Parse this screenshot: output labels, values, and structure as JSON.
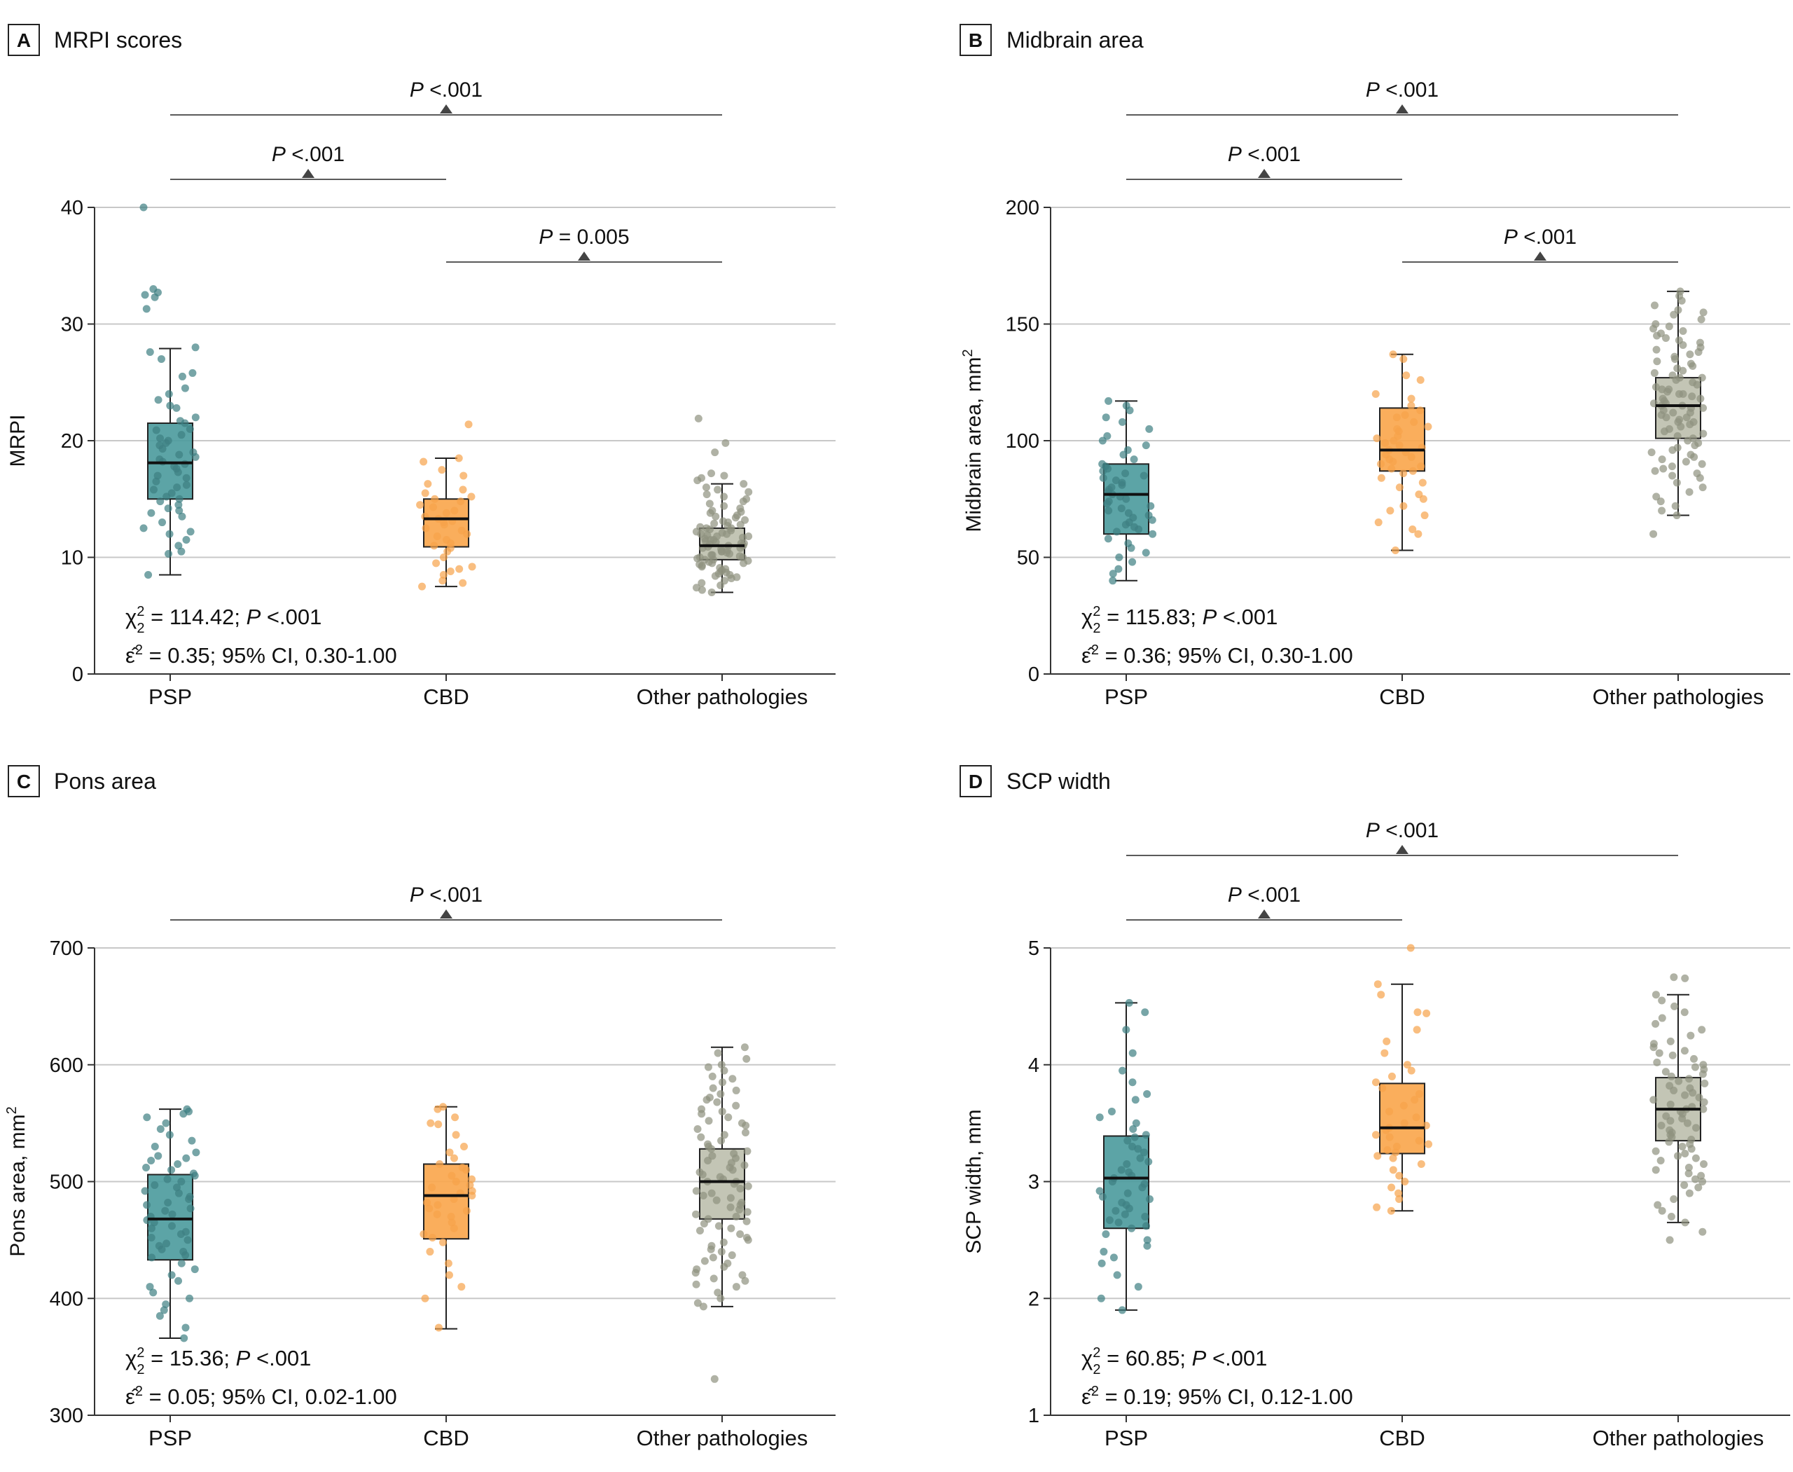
{
  "figure": {
    "categories": [
      "PSP",
      "CBD",
      "Other pathologies"
    ],
    "colors": {
      "PSP": "#4a9a9c",
      "CBD": "#f9a54a",
      "Other pathologies": "#bcbfad",
      "dot_PSP": "#3d7f82",
      "dot_CBD": "#f6a24a",
      "dot_Other": "#8f917f",
      "grid": "#c8c8c8",
      "bracket": "#5a5a5a",
      "axis": "#333333"
    }
  },
  "chart_data": [
    {
      "type": "box",
      "panel": "A",
      "title": "MRPI scores",
      "ylabel": "MRPI",
      "ylabel_sup": "",
      "ylim": [
        0,
        40
      ],
      "yticks": [
        0,
        10,
        20,
        30,
        40
      ],
      "ytick_labels": [
        "0",
        "10",
        "20",
        "30",
        "40"
      ],
      "series": [
        {
          "name": "PSP",
          "whisker_low": 8.5,
          "q1": 15.0,
          "median": 18.1,
          "q3": 21.5,
          "whisker_high": 27.9,
          "points": [
            40.0,
            33.0,
            32.5,
            32.7,
            32.3,
            31.3,
            28.0,
            27.6,
            27.0,
            25.8,
            25.5,
            24.5,
            24.0,
            23.5,
            23.0,
            22.8,
            22.0,
            21.7,
            21.5,
            21.0,
            20.9,
            20.5,
            20.2,
            20.0,
            19.8,
            19.6,
            19.3,
            19.0,
            18.8,
            18.6,
            18.4,
            18.2,
            18.0,
            17.8,
            17.6,
            17.3,
            17.0,
            16.8,
            16.5,
            16.2,
            16.0,
            15.8,
            15.5,
            15.2,
            15.0,
            14.8,
            14.5,
            14.2,
            14.0,
            13.8,
            13.5,
            13.0,
            12.5,
            12.2,
            12.0,
            11.5,
            11.0,
            10.5,
            10.3,
            8.5
          ]
        },
        {
          "name": "CBD",
          "whisker_low": 7.5,
          "q1": 10.9,
          "median": 13.3,
          "q3": 15.0,
          "whisker_high": 18.5,
          "points": [
            21.4,
            18.5,
            18.2,
            17.5,
            17.0,
            16.3,
            15.8,
            15.5,
            15.2,
            15.0,
            14.8,
            14.5,
            14.3,
            14.0,
            13.8,
            13.5,
            13.3,
            13.1,
            13.0,
            12.8,
            12.5,
            12.3,
            12.0,
            11.8,
            11.5,
            11.2,
            11.0,
            10.8,
            10.5,
            10.0,
            9.5,
            9.2,
            9.0,
            8.8,
            8.5,
            8.0,
            7.8,
            7.5
          ]
        },
        {
          "name": "Other pathologies",
          "whisker_low": 7.0,
          "q1": 9.8,
          "median": 11.0,
          "q3": 12.5,
          "whisker_high": 16.3,
          "points": [
            21.9,
            19.8,
            19.0,
            17.2,
            17.0,
            16.8,
            16.6,
            16.3,
            16.0,
            15.8,
            15.6,
            15.4,
            15.2,
            15.0,
            14.8,
            14.6,
            14.4,
            14.2,
            14.0,
            13.9,
            13.8,
            13.6,
            13.5,
            13.4,
            13.2,
            13.1,
            13.0,
            12.9,
            12.8,
            12.7,
            12.6,
            12.5,
            12.5,
            12.4,
            12.3,
            12.2,
            12.1,
            12.0,
            12.0,
            11.9,
            11.8,
            11.8,
            11.7,
            11.6,
            11.5,
            11.5,
            11.4,
            11.3,
            11.2,
            11.2,
            11.1,
            11.0,
            11.0,
            11.0,
            10.9,
            10.8,
            10.8,
            10.7,
            10.6,
            10.5,
            10.5,
            10.4,
            10.3,
            10.2,
            10.2,
            10.1,
            10.0,
            10.0,
            9.9,
            9.8,
            9.8,
            9.7,
            9.6,
            9.5,
            9.5,
            9.4,
            9.3,
            9.2,
            9.1,
            9.0,
            8.9,
            8.8,
            8.7,
            8.6,
            8.5,
            8.4,
            8.3,
            8.2,
            8.0,
            7.8,
            7.6,
            7.4,
            7.2,
            7.0
          ]
        }
      ],
      "comparisons": [
        {
          "from": 0,
          "to": 2,
          "label": "P <.001",
          "p_italic": "P",
          "p_rest": " <.001"
        },
        {
          "from": 0,
          "to": 1,
          "label": "P <.001",
          "p_italic": "P",
          "p_rest": " <.001"
        },
        {
          "from": 1,
          "to": 2,
          "label": "P = 0.005",
          "p_italic": "P",
          "p_rest": " = 0.005"
        }
      ],
      "stats": {
        "line1_pre": "χ",
        "line1_sup": "2",
        "line1_sub": "2",
        "line1_mid": " = 114.42; ",
        "line1_p": "P",
        "line1_end": " <.001",
        "line2_pre": "ε̂",
        "line2_sup": "2",
        "line2_end": " = 0.35; 95% CI, 0.30-1.00"
      }
    },
    {
      "type": "box",
      "panel": "B",
      "title": "Midbrain area",
      "ylabel": "Midbrain area, mm",
      "ylabel_sup": "2",
      "ylim": [
        0,
        200
      ],
      "yticks": [
        0,
        50,
        100,
        150,
        200
      ],
      "ytick_labels": [
        "0",
        "50",
        "100",
        "150",
        "200"
      ],
      "series": [
        {
          "name": "PSP",
          "whisker_low": 40,
          "q1": 60,
          "median": 77,
          "q3": 90,
          "whisker_high": 117,
          "points": [
            117,
            115,
            113,
            110,
            108,
            105,
            102,
            100,
            98,
            96,
            94,
            92,
            90,
            89,
            88,
            87,
            86,
            85,
            84,
            83,
            82,
            81,
            80,
            79,
            78,
            77,
            76,
            75,
            74,
            73,
            72,
            71,
            70,
            69,
            68,
            67,
            66,
            65,
            64,
            63,
            62,
            61,
            60,
            58,
            56,
            54,
            52,
            50,
            48,
            45,
            43,
            40
          ]
        },
        {
          "name": "CBD",
          "whisker_low": 53,
          "q1": 87,
          "median": 96,
          "q3": 114,
          "whisker_high": 137,
          "points": [
            137,
            135,
            128,
            126,
            120,
            118,
            115,
            113,
            111,
            110,
            108,
            106,
            105,
            104,
            102,
            101,
            100,
            99,
            98,
            97,
            96,
            95,
            94,
            93,
            92,
            91,
            90,
            89,
            88,
            87,
            86,
            84,
            82,
            80,
            77,
            75,
            72,
            70,
            68,
            65,
            62,
            60,
            53
          ]
        },
        {
          "name": "Other pathologies",
          "whisker_low": 68,
          "q1": 101,
          "median": 115,
          "q3": 127,
          "whisker_high": 164,
          "points": [
            164,
            162,
            160,
            158,
            156,
            155,
            154,
            152,
            150,
            149,
            148,
            147,
            146,
            145,
            144,
            143,
            142,
            141,
            140,
            139,
            138,
            137,
            136,
            135,
            134,
            133,
            132,
            131,
            130,
            129,
            128,
            127,
            127,
            126,
            125,
            124,
            123,
            122,
            122,
            121,
            120,
            120,
            119,
            118,
            118,
            117,
            116,
            116,
            115,
            115,
            114,
            114,
            113,
            112,
            112,
            111,
            110,
            110,
            109,
            108,
            108,
            107,
            106,
            105,
            104,
            103,
            102,
            101,
            100,
            99,
            98,
            97,
            96,
            95,
            94,
            93,
            92,
            91,
            90,
            89,
            88,
            87,
            86,
            85,
            84,
            82,
            80,
            78,
            76,
            74,
            72,
            70,
            68,
            60
          ]
        }
      ],
      "comparisons": [
        {
          "from": 0,
          "to": 2,
          "label": "P <.001",
          "p_italic": "P",
          "p_rest": " <.001"
        },
        {
          "from": 0,
          "to": 1,
          "label": "P <.001",
          "p_italic": "P",
          "p_rest": " <.001"
        },
        {
          "from": 1,
          "to": 2,
          "label": "P <.001",
          "p_italic": "P",
          "p_rest": " <.001"
        }
      ],
      "stats": {
        "line1_pre": "χ",
        "line1_sup": "2",
        "line1_sub": "2",
        "line1_mid": " = 115.83; ",
        "line1_p": "P",
        "line1_end": " <.001",
        "line2_pre": "ε̂",
        "line2_sup": "2",
        "line2_end": " = 0.36; 95% CI, 0.30-1.00"
      }
    },
    {
      "type": "box",
      "panel": "C",
      "title": "Pons area",
      "ylabel": "Pons area, mm",
      "ylabel_sup": "2",
      "ylim": [
        300,
        700
      ],
      "yticks": [
        300,
        400,
        500,
        600,
        700
      ],
      "ytick_labels": [
        "300",
        "400",
        "500",
        "600",
        "700"
      ],
      "series": [
        {
          "name": "PSP",
          "whisker_low": 366,
          "q1": 433,
          "median": 468,
          "q3": 506,
          "whisker_high": 562,
          "points": [
            562,
            560,
            558,
            555,
            550,
            545,
            540,
            535,
            530,
            525,
            522,
            520,
            518,
            515,
            512,
            510,
            507,
            505,
            502,
            500,
            497,
            495,
            492,
            490,
            487,
            485,
            482,
            480,
            477,
            475,
            472,
            470,
            467,
            465,
            462,
            460,
            457,
            455,
            452,
            450,
            447,
            445,
            442,
            440,
            437,
            435,
            430,
            425,
            420,
            415,
            410,
            405,
            400,
            395,
            390,
            385,
            375,
            366
          ]
        },
        {
          "name": "CBD",
          "whisker_low": 374,
          "q1": 451,
          "median": 488,
          "q3": 515,
          "whisker_high": 564,
          "points": [
            564,
            562,
            555,
            550,
            549,
            540,
            530,
            525,
            520,
            515,
            512,
            510,
            505,
            502,
            500,
            497,
            495,
            492,
            490,
            488,
            485,
            482,
            480,
            477,
            475,
            472,
            470,
            465,
            460,
            455,
            452,
            448,
            440,
            430,
            420,
            410,
            400,
            375
          ]
        },
        {
          "name": "Other pathologies",
          "whisker_low": 393,
          "q1": 468,
          "median": 500,
          "q3": 528,
          "whisker_high": 615,
          "points": [
            615,
            610,
            605,
            600,
            598,
            595,
            590,
            588,
            585,
            580,
            578,
            575,
            572,
            570,
            568,
            565,
            562,
            560,
            558,
            555,
            552,
            550,
            548,
            545,
            542,
            540,
            538,
            535,
            532,
            530,
            528,
            526,
            524,
            522,
            520,
            518,
            516,
            514,
            512,
            510,
            508,
            506,
            504,
            502,
            500,
            500,
            498,
            496,
            494,
            492,
            490,
            488,
            486,
            484,
            482,
            480,
            478,
            476,
            474,
            472,
            470,
            468,
            466,
            464,
            462,
            460,
            458,
            455,
            452,
            450,
            448,
            445,
            442,
            440,
            437,
            435,
            432,
            430,
            427,
            425,
            422,
            420,
            417,
            415,
            412,
            410,
            405,
            400,
            396,
            393,
            331
          ]
        }
      ],
      "comparisons": [
        {
          "from": 0,
          "to": 2,
          "label": "P <.001",
          "p_italic": "P",
          "p_rest": " <.001"
        }
      ],
      "stats": {
        "line1_pre": "χ",
        "line1_sup": "2",
        "line1_sub": "2",
        "line1_mid": " = 15.36; ",
        "line1_p": "P",
        "line1_end": " <.001",
        "line2_pre": "ε̂",
        "line2_sup": "2",
        "line2_end": " = 0.05; 95% CI, 0.02-1.00"
      }
    },
    {
      "type": "box",
      "panel": "D",
      "title": "SCP width",
      "ylabel": "SCP width, mm",
      "ylabel_sup": "",
      "ylim": [
        1,
        5
      ],
      "yticks": [
        1,
        2,
        3,
        4,
        5
      ],
      "ytick_labels": [
        "1",
        "2",
        "3",
        "4",
        "5"
      ],
      "series": [
        {
          "name": "PSP",
          "whisker_low": 1.9,
          "q1": 2.6,
          "median": 3.03,
          "q3": 3.39,
          "whisker_high": 4.53,
          "points": [
            4.53,
            4.45,
            4.3,
            4.1,
            3.95,
            3.85,
            3.75,
            3.7,
            3.6,
            3.55,
            3.5,
            3.45,
            3.4,
            3.38,
            3.35,
            3.3,
            3.28,
            3.25,
            3.2,
            3.17,
            3.15,
            3.1,
            3.08,
            3.05,
            3.03,
            3.0,
            2.98,
            2.95,
            2.92,
            2.9,
            2.87,
            2.85,
            2.82,
            2.8,
            2.77,
            2.75,
            2.72,
            2.7,
            2.67,
            2.65,
            2.62,
            2.6,
            2.55,
            2.5,
            2.45,
            2.4,
            2.35,
            2.3,
            2.2,
            2.1,
            2.0,
            1.9
          ]
        },
        {
          "name": "CBD",
          "whisker_low": 2.75,
          "q1": 3.24,
          "median": 3.46,
          "q3": 3.84,
          "whisker_high": 4.69,
          "points": [
            5.0,
            4.69,
            4.6,
            4.45,
            4.44,
            4.3,
            4.2,
            4.1,
            4.0,
            3.95,
            3.9,
            3.85,
            3.8,
            3.75,
            3.7,
            3.65,
            3.6,
            3.55,
            3.5,
            3.48,
            3.46,
            3.44,
            3.4,
            3.38,
            3.35,
            3.32,
            3.3,
            3.27,
            3.25,
            3.22,
            3.2,
            3.15,
            3.1,
            3.05,
            3.0,
            2.95,
            2.9,
            2.85,
            2.78,
            2.75
          ]
        },
        {
          "name": "Other pathologies",
          "whisker_low": 2.65,
          "q1": 3.35,
          "median": 3.62,
          "q3": 3.89,
          "whisker_high": 4.6,
          "points": [
            4.75,
            4.74,
            4.6,
            4.55,
            4.5,
            4.45,
            4.4,
            4.35,
            4.3,
            4.25,
            4.2,
            4.18,
            4.15,
            4.12,
            4.1,
            4.08,
            4.05,
            4.02,
            4.0,
            3.98,
            3.96,
            3.94,
            3.92,
            3.9,
            3.88,
            3.86,
            3.84,
            3.82,
            3.8,
            3.78,
            3.76,
            3.74,
            3.72,
            3.7,
            3.68,
            3.66,
            3.64,
            3.62,
            3.62,
            3.6,
            3.58,
            3.56,
            3.54,
            3.52,
            3.5,
            3.48,
            3.46,
            3.44,
            3.42,
            3.4,
            3.38,
            3.36,
            3.34,
            3.32,
            3.3,
            3.28,
            3.26,
            3.24,
            3.22,
            3.2,
            3.18,
            3.15,
            3.12,
            3.1,
            3.07,
            3.05,
            3.02,
            3.0,
            2.97,
            2.95,
            2.9,
            2.85,
            2.8,
            2.75,
            2.7,
            2.65,
            2.57,
            2.5
          ]
        }
      ],
      "comparisons": [
        {
          "from": 0,
          "to": 2,
          "label": "P <.001",
          "p_italic": "P",
          "p_rest": " <.001"
        },
        {
          "from": 0,
          "to": 1,
          "label": "P <.001",
          "p_italic": "P",
          "p_rest": " <.001"
        }
      ],
      "stats": {
        "line1_pre": "χ",
        "line1_sup": "2",
        "line1_sub": "2",
        "line1_mid": " = 60.85; ",
        "line1_p": "P",
        "line1_end": " <.001",
        "line2_pre": "ε̂",
        "line2_sup": "2",
        "line2_end": " = 0.19; 95% CI, 0.12-1.00"
      }
    }
  ]
}
